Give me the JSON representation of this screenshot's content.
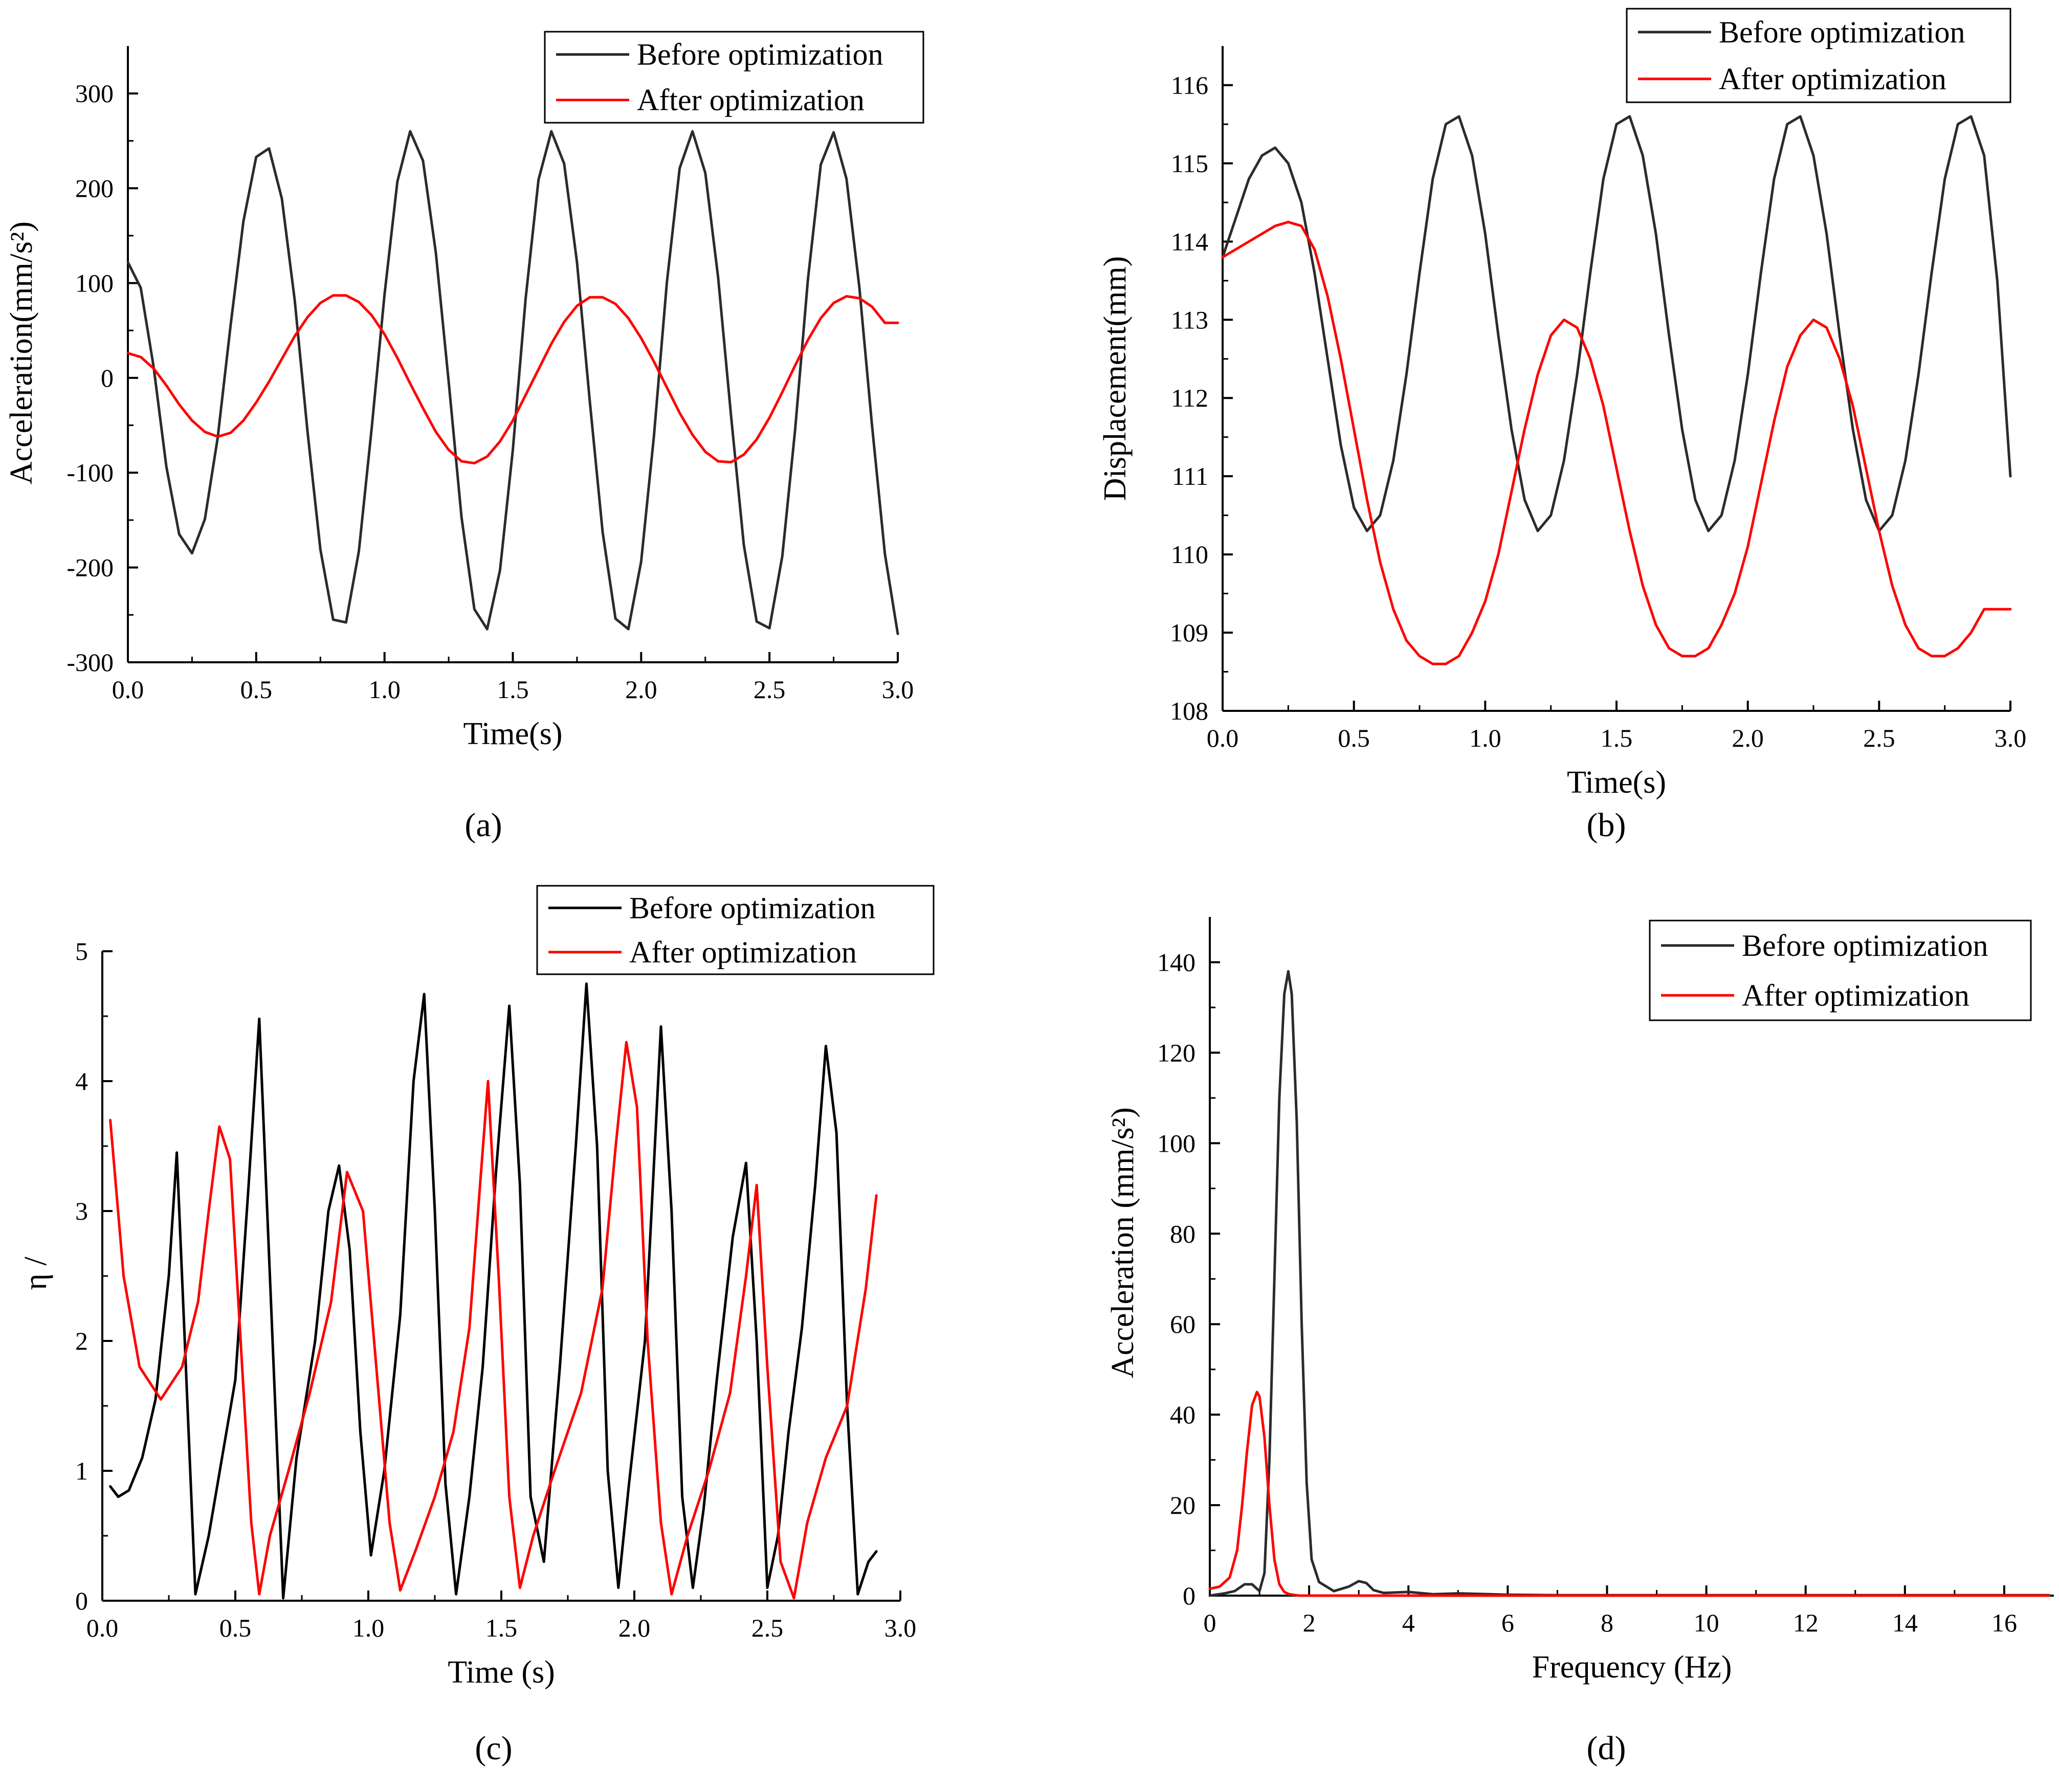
{
  "figure": {
    "panel_labels": [
      "(a)",
      "(b)",
      "(c)",
      "(d)"
    ],
    "colors": {
      "before": "#2b2b2b",
      "after": "#ff0000",
      "axis": "#000000"
    }
  },
  "chart_data": [
    {
      "id": "a",
      "type": "line",
      "panel_label": "(a)",
      "xlabel": "Time(s)",
      "ylabel": "Acceleration(mm/s²)",
      "xlim": [
        0,
        3
      ],
      "ylim": [
        -300,
        350
      ],
      "xticks": [
        0,
        0.5,
        1,
        1.5,
        2,
        2.5,
        3
      ],
      "xtick_labels": [
        "0.0",
        "0.5",
        "1.0",
        "1.5",
        "2.0",
        "2.5",
        "3.0"
      ],
      "yticks": [
        -300,
        -200,
        -100,
        0,
        100,
        200,
        300
      ],
      "ytick_labels": [
        "-300",
        "-200",
        "-100",
        "0",
        "100",
        "200",
        "300"
      ],
      "legend": {
        "position": "top-right",
        "entries": [
          "Before optimization",
          "After optimization"
        ]
      },
      "series": [
        {
          "name": "Before optimization",
          "color": "#2b2b2b",
          "x": [
            0,
            0.05,
            0.1,
            0.15,
            0.2,
            0.25,
            0.3,
            0.35,
            0.4,
            0.45,
            0.5,
            0.55,
            0.6,
            0.65,
            0.7,
            0.75,
            0.8,
            0.85,
            0.9,
            0.95,
            1.0,
            1.05,
            1.1,
            1.15,
            1.2,
            1.25,
            1.3,
            1.35,
            1.4,
            1.45,
            1.5,
            1.55,
            1.6,
            1.65,
            1.7,
            1.75,
            1.8,
            1.85,
            1.9,
            1.95,
            2.0,
            2.05,
            2.1,
            2.15,
            2.2,
            2.25,
            2.3,
            2.35,
            2.4,
            2.45,
            2.5,
            2.55,
            2.6,
            2.65,
            2.7,
            2.75,
            2.8,
            2.85,
            2.9,
            2.95,
            3.0
          ],
          "y": [
            122,
            95,
            12,
            -94,
            -165,
            -185,
            -149,
            -63,
            55,
            165,
            233,
            242,
            189,
            82,
            -57,
            -181,
            -255,
            -258,
            -183,
            -53,
            88,
            207,
            260,
            229,
            132,
            -4,
            -147,
            -244,
            -265,
            -203,
            -76,
            84,
            209,
            260,
            226,
            122,
            -25,
            -163,
            -254,
            -265,
            -194,
            -61,
            100,
            221,
            260,
            216,
            106,
            -39,
            -176,
            -257,
            -264,
            -188,
            -55,
            104,
            225,
            259,
            210,
            96,
            -51,
            -186,
            -270
          ]
        },
        {
          "name": "After optimization",
          "color": "#ff0000",
          "x": [
            0,
            0.05,
            0.1,
            0.15,
            0.2,
            0.25,
            0.3,
            0.35,
            0.4,
            0.45,
            0.5,
            0.55,
            0.6,
            0.65,
            0.7,
            0.75,
            0.8,
            0.85,
            0.9,
            0.95,
            1.0,
            1.05,
            1.1,
            1.15,
            1.2,
            1.25,
            1.3,
            1.35,
            1.4,
            1.45,
            1.5,
            1.55,
            1.6,
            1.65,
            1.7,
            1.75,
            1.8,
            1.85,
            1.9,
            1.95,
            2.0,
            2.05,
            2.1,
            2.15,
            2.2,
            2.25,
            2.3,
            2.35,
            2.4,
            2.45,
            2.5,
            2.55,
            2.6,
            2.65,
            2.7,
            2.75,
            2.8,
            2.85,
            2.9,
            2.95,
            3.0
          ],
          "y": [
            26,
            22,
            10,
            -8,
            -28,
            -45,
            -57,
            -62,
            -58,
            -45,
            -26,
            -4,
            20,
            44,
            64,
            79,
            87,
            87,
            80,
            66,
            46,
            21,
            -6,
            -32,
            -57,
            -76,
            -88,
            -90,
            -83,
            -67,
            -45,
            -18,
            9,
            36,
            59,
            76,
            85,
            85,
            78,
            63,
            42,
            17,
            -10,
            -37,
            -60,
            -78,
            -88,
            -89,
            -81,
            -65,
            -42,
            -15,
            13,
            40,
            63,
            79,
            86,
            84,
            75,
            58,
            58
          ]
        }
      ]
    },
    {
      "id": "b",
      "type": "line",
      "panel_label": "(b)",
      "xlabel": "Time(s)",
      "ylabel": "Displacement(mm)",
      "xlim": [
        0,
        3
      ],
      "ylim": [
        108,
        116.5
      ],
      "xticks": [
        0,
        0.5,
        1,
        1.5,
        2,
        2.5,
        3
      ],
      "xtick_labels": [
        "0.0",
        "0.5",
        "1.0",
        "1.5",
        "2.0",
        "2.5",
        "3.0"
      ],
      "yticks": [
        108,
        109,
        110,
        111,
        112,
        113,
        114,
        115,
        116
      ],
      "ytick_labels": [
        "108",
        "109",
        "110",
        "111",
        "112",
        "113",
        "114",
        "115",
        "116"
      ],
      "legend": {
        "position": "top-right",
        "entries": [
          "Before optimization",
          "After optimization"
        ]
      },
      "series": [
        {
          "name": "Before optimization",
          "color": "#2b2b2b",
          "x": [
            0,
            0.05,
            0.1,
            0.15,
            0.2,
            0.25,
            0.3,
            0.35,
            0.4,
            0.45,
            0.5,
            0.55,
            0.6,
            0.65,
            0.7,
            0.75,
            0.8,
            0.85,
            0.9,
            0.95,
            1.0,
            1.05,
            1.1,
            1.15,
            1.2,
            1.25,
            1.3,
            1.35,
            1.4,
            1.45,
            1.5,
            1.55,
            1.6,
            1.65,
            1.7,
            1.75,
            1.8,
            1.85,
            1.9,
            1.95,
            2.0,
            2.05,
            2.1,
            2.15,
            2.2,
            2.25,
            2.3,
            2.35,
            2.4,
            2.45,
            2.5,
            2.55,
            2.6,
            2.65,
            2.7,
            2.75,
            2.8,
            2.85,
            2.9,
            2.95,
            3.0
          ],
          "y": [
            113.8,
            114.3,
            114.8,
            115.1,
            115.2,
            115.0,
            114.5,
            113.6,
            112.5,
            111.4,
            110.6,
            110.3,
            110.5,
            111.2,
            112.3,
            113.6,
            114.8,
            115.5,
            115.6,
            115.1,
            114.1,
            112.8,
            111.6,
            110.7,
            110.3,
            110.5,
            111.2,
            112.3,
            113.6,
            114.8,
            115.5,
            115.6,
            115.1,
            114.1,
            112.8,
            111.6,
            110.7,
            110.3,
            110.5,
            111.2,
            112.3,
            113.6,
            114.8,
            115.5,
            115.6,
            115.1,
            114.1,
            112.8,
            111.6,
            110.7,
            110.3,
            110.5,
            111.2,
            112.3,
            113.6,
            114.8,
            115.5,
            115.6,
            115.1,
            113.5,
            111.0
          ]
        },
        {
          "name": "After optimization",
          "color": "#ff0000",
          "x": [
            0,
            0.05,
            0.1,
            0.15,
            0.2,
            0.25,
            0.3,
            0.35,
            0.4,
            0.45,
            0.5,
            0.55,
            0.6,
            0.65,
            0.7,
            0.75,
            0.8,
            0.85,
            0.9,
            0.95,
            1.0,
            1.05,
            1.1,
            1.15,
            1.2,
            1.25,
            1.3,
            1.35,
            1.4,
            1.45,
            1.5,
            1.55,
            1.6,
            1.65,
            1.7,
            1.75,
            1.8,
            1.85,
            1.9,
            1.95,
            2.0,
            2.05,
            2.1,
            2.15,
            2.2,
            2.25,
            2.3,
            2.35,
            2.4,
            2.45,
            2.5,
            2.55,
            2.6,
            2.65,
            2.7,
            2.75,
            2.8,
            2.85,
            2.9,
            2.95,
            3.0
          ],
          "y": [
            113.8,
            113.9,
            114.0,
            114.1,
            114.2,
            114.25,
            114.2,
            113.9,
            113.3,
            112.5,
            111.6,
            110.7,
            109.9,
            109.3,
            108.9,
            108.7,
            108.6,
            108.6,
            108.7,
            109.0,
            109.4,
            110.0,
            110.8,
            111.6,
            112.3,
            112.8,
            113.0,
            112.9,
            112.5,
            111.9,
            111.1,
            110.3,
            109.6,
            109.1,
            108.8,
            108.7,
            108.7,
            108.8,
            109.1,
            109.5,
            110.1,
            110.9,
            111.7,
            112.4,
            112.8,
            113.0,
            112.9,
            112.5,
            111.9,
            111.1,
            110.3,
            109.6,
            109.1,
            108.8,
            108.7,
            108.7,
            108.8,
            109.0,
            109.3,
            109.3,
            109.3
          ]
        }
      ]
    },
    {
      "id": "c",
      "type": "line",
      "panel_label": "(c)",
      "xlabel": "Time (s)",
      "ylabel": "η /",
      "xlim": [
        0,
        3
      ],
      "ylim": [
        0,
        5
      ],
      "xticks": [
        0,
        0.5,
        1,
        1.5,
        2,
        2.5,
        3
      ],
      "xtick_labels": [
        "0.0",
        "0.5",
        "1.0",
        "1.5",
        "2.0",
        "2.5",
        "3.0"
      ],
      "yticks": [
        0,
        1,
        2,
        3,
        4,
        5
      ],
      "ytick_labels": [
        "0",
        "1",
        "2",
        "3",
        "4",
        "5"
      ],
      "legend": {
        "position": "top-right",
        "entries": [
          "Before optimization",
          "After optimization"
        ]
      },
      "series": [
        {
          "name": "Before optimization",
          "color": "#000000",
          "x": [
            0.03,
            0.06,
            0.1,
            0.15,
            0.2,
            0.25,
            0.28,
            0.31,
            0.35,
            0.4,
            0.45,
            0.5,
            0.55,
            0.59,
            0.63,
            0.68,
            0.73,
            0.8,
            0.85,
            0.89,
            0.93,
            0.97,
            1.01,
            1.06,
            1.12,
            1.17,
            1.21,
            1.25,
            1.29,
            1.33,
            1.38,
            1.43,
            1.48,
            1.53,
            1.57,
            1.61,
            1.66,
            1.72,
            1.78,
            1.82,
            1.86,
            1.9,
            1.94,
            1.98,
            2.04,
            2.1,
            2.14,
            2.18,
            2.22,
            2.26,
            2.31,
            2.37,
            2.42,
            2.46,
            2.5,
            2.54,
            2.58,
            2.63,
            2.68,
            2.72,
            2.76,
            2.8,
            2.84,
            2.88,
            2.91
          ],
          "y": [
            0.88,
            0.8,
            0.85,
            1.1,
            1.55,
            2.5,
            3.45,
            2.0,
            0.05,
            0.5,
            1.1,
            1.7,
            3.2,
            4.48,
            2.5,
            0.02,
            1.1,
            2.0,
            3.0,
            3.35,
            2.7,
            1.3,
            0.35,
            1.0,
            2.2,
            4.0,
            4.67,
            3.0,
            0.9,
            0.05,
            0.8,
            1.8,
            3.3,
            4.58,
            3.2,
            0.8,
            0.3,
            1.8,
            3.5,
            4.75,
            3.5,
            1.0,
            0.1,
            0.9,
            2.0,
            4.42,
            3.0,
            0.8,
            0.1,
            0.7,
            1.7,
            2.8,
            3.37,
            2.0,
            0.1,
            0.5,
            1.3,
            2.1,
            3.2,
            4.27,
            3.6,
            1.5,
            0.05,
            0.3,
            0.38
          ]
        },
        {
          "name": "After optimization",
          "color": "#ff0000",
          "x": [
            0.03,
            0.08,
            0.14,
            0.22,
            0.3,
            0.36,
            0.4,
            0.44,
            0.48,
            0.52,
            0.56,
            0.59,
            0.63,
            0.7,
            0.78,
            0.86,
            0.92,
            0.98,
            1.03,
            1.08,
            1.12,
            1.18,
            1.25,
            1.32,
            1.38,
            1.42,
            1.45,
            1.49,
            1.53,
            1.57,
            1.62,
            1.7,
            1.8,
            1.88,
            1.93,
            1.97,
            2.01,
            2.05,
            2.1,
            2.14,
            2.2,
            2.28,
            2.36,
            2.42,
            2.46,
            2.5,
            2.55,
            2.6,
            2.65,
            2.72,
            2.8,
            2.87,
            2.91
          ],
          "y": [
            3.7,
            2.5,
            1.8,
            1.55,
            1.8,
            2.3,
            3.0,
            3.65,
            3.4,
            2.0,
            0.6,
            0.05,
            0.5,
            1.0,
            1.6,
            2.3,
            3.3,
            3.0,
            1.8,
            0.6,
            0.08,
            0.4,
            0.8,
            1.3,
            2.1,
            3.2,
            4.0,
            2.5,
            0.8,
            0.1,
            0.5,
            1.0,
            1.6,
            2.4,
            3.5,
            4.3,
            3.8,
            2.0,
            0.6,
            0.05,
            0.5,
            1.0,
            1.6,
            2.5,
            3.2,
            1.8,
            0.3,
            0.02,
            0.6,
            1.1,
            1.5,
            2.4,
            3.12
          ]
        }
      ]
    },
    {
      "id": "d",
      "type": "line",
      "panel_label": "(d)",
      "xlabel": "Frequency (Hz)",
      "ylabel": "Acceleration (mm/s²)",
      "xlim": [
        0,
        17
      ],
      "ylim": [
        0,
        150
      ],
      "xticks": [
        0,
        2,
        4,
        6,
        8,
        10,
        12,
        14,
        16
      ],
      "xtick_labels": [
        "0",
        "2",
        "4",
        "6",
        "8",
        "10",
        "12",
        "14",
        "16"
      ],
      "yticks": [
        0,
        20,
        40,
        60,
        80,
        100,
        120,
        140
      ],
      "ytick_labels": [
        "0",
        "20",
        "40",
        "60",
        "80",
        "100",
        "120",
        "140"
      ],
      "legend": {
        "position": "top-right",
        "entries": [
          "Before optimization",
          "After optimization"
        ]
      },
      "series": [
        {
          "name": "Before optimization",
          "color": "#2b2b2b",
          "x": [
            0,
            0.3,
            0.5,
            0.7,
            0.85,
            1.0,
            1.1,
            1.2,
            1.3,
            1.4,
            1.5,
            1.58,
            1.65,
            1.75,
            1.85,
            1.95,
            2.05,
            2.2,
            2.5,
            2.8,
            3.0,
            3.15,
            3.3,
            3.5,
            4.0,
            4.5,
            5.0,
            6.0,
            7.0,
            8.0,
            10.0,
            12.0,
            14.0,
            16.0,
            16.9
          ],
          "y": [
            0,
            0.5,
            1,
            2.5,
            2.5,
            1,
            5,
            30,
            70,
            110,
            133,
            138,
            133,
            105,
            60,
            25,
            8,
            3,
            1,
            2,
            3.2,
            2.8,
            1.2,
            0.6,
            0.8,
            0.3,
            0.5,
            0.2,
            0.1,
            0.1,
            0.1,
            0.1,
            0.1,
            0.1,
            0.1
          ]
        },
        {
          "name": "After optimization",
          "color": "#ff0000",
          "x": [
            0,
            0.2,
            0.4,
            0.55,
            0.65,
            0.75,
            0.85,
            0.95,
            1.0,
            1.1,
            1.2,
            1.3,
            1.4,
            1.5,
            1.6,
            1.8,
            2.0,
            4.0,
            8.0,
            12.0,
            16.9
          ],
          "y": [
            1.5,
            2,
            4,
            10,
            20,
            32,
            42,
            45,
            44,
            35,
            20,
            8,
            2.5,
            0.8,
            0.3,
            0,
            0,
            0,
            0,
            0,
            0
          ]
        }
      ]
    }
  ]
}
